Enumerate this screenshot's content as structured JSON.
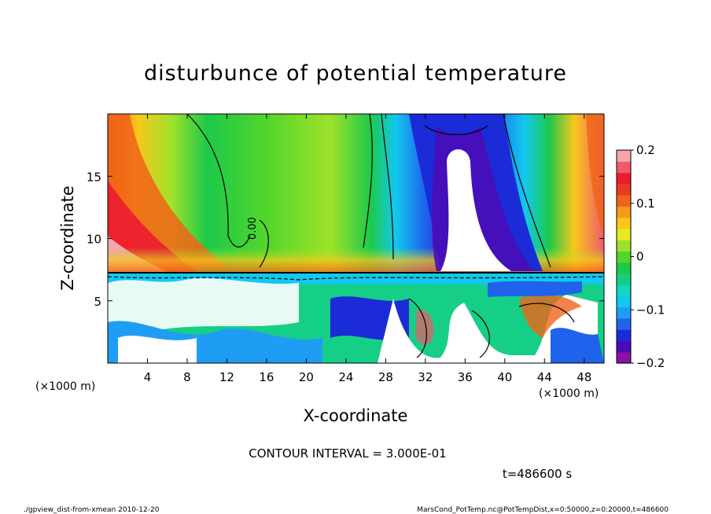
{
  "chart_data": {
    "type": "heatmap",
    "title": "disturbunce of potential temperature",
    "xlabel": "X-coordinate",
    "ylabel": "Z-coordinate",
    "x_unit": "(×1000 m)",
    "y_unit": "(×1000 m)",
    "xlim": [
      0,
      50
    ],
    "ylim": [
      0,
      20
    ],
    "x_ticks": [
      4,
      8,
      12,
      16,
      20,
      24,
      28,
      32,
      36,
      40,
      44,
      48
    ],
    "y_ticks": [
      5,
      10,
      15
    ],
    "colorbar": {
      "range": [
        -0.2,
        0.2
      ],
      "tick_values": [
        0.2,
        0.1,
        0,
        -0.1,
        -0.2
      ],
      "tick_labels": [
        "0.2",
        "0.1",
        "0",
        "−0.1",
        "−0.2"
      ],
      "colors": [
        "#8b10a8",
        "#4a0cb8",
        "#1b2bd8",
        "#1f63ec",
        "#1f9df4",
        "#12c8ee",
        "#10d6c2",
        "#16cf86",
        "#1dc94a",
        "#52d62b",
        "#9fe22a",
        "#e8ea21",
        "#f8c81c",
        "#f89a18",
        "#f06418",
        "#e83a24",
        "#ec1c30",
        "#f05a6a",
        "#f7a4ae"
      ]
    },
    "contour_label": "0.00",
    "contour_interval_text": "CONTOUR INTERVAL = 3.000E-01",
    "time_text": "t=486600 s"
  },
  "footer": {
    "left": "./gpview_dist-from-xmean  2010-12-20",
    "right": "MarsCond_PotTemp.nc@PotTempDist,x=0:50000,z=0:20000,t=486600"
  }
}
